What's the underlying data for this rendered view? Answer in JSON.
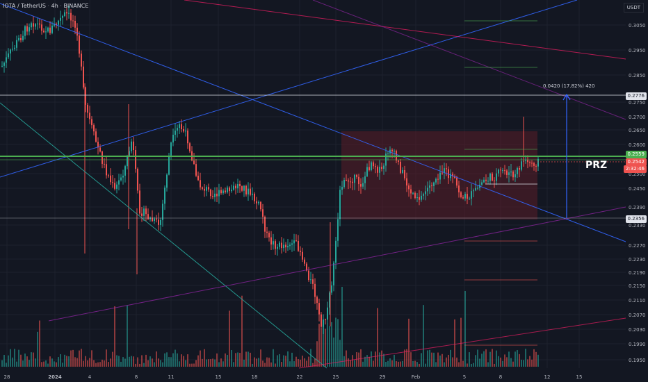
{
  "header": {
    "pair": "IOTA / TetherUS",
    "interval": "4h",
    "exchange": "BINANCE",
    "currency": "USDT"
  },
  "annotations": {
    "prz": "PRZ",
    "measure": "0.0420 (17.82%) 420"
  },
  "price_tags": {
    "target": "0.2776",
    "green_level": "0.2559",
    "current": "0.2542",
    "countdown": "2:32:46",
    "low": "0.2356"
  },
  "colors": {
    "background": "#131722",
    "up": "#26a69a",
    "down": "#ef5350",
    "blue_line": "#3366ff",
    "pink_line": "#e91e63",
    "green_line": "#4caf50",
    "zone": "#5a1e28"
  },
  "chart_data": {
    "type": "candlestick",
    "symbol": "IOTA/USDT",
    "y_axis": {
      "ticks": [
        "0.3050",
        "0.2950",
        "0.2850",
        "0.2750",
        "0.2700",
        "0.2650",
        "0.2600",
        "0.2500",
        "0.2450",
        "0.2390",
        "0.2330",
        "0.2270",
        "0.2230",
        "0.2190",
        "0.2150",
        "0.2110",
        "0.2070",
        "0.2030",
        "0.1990",
        "0.1950"
      ]
    },
    "x_axis": {
      "ticks": [
        "28",
        "2024",
        "4",
        "8",
        "11",
        "15",
        "18",
        "22",
        "25",
        "29",
        "Feb",
        "5",
        "8",
        "12",
        "15"
      ]
    },
    "levels": {
      "target": 0.2776,
      "resistance": 0.2559,
      "current": 0.2542,
      "prz_low": 0.2356
    },
    "measurement": {
      "change": 0.042,
      "percent": 17.82,
      "ticks": 420
    }
  }
}
